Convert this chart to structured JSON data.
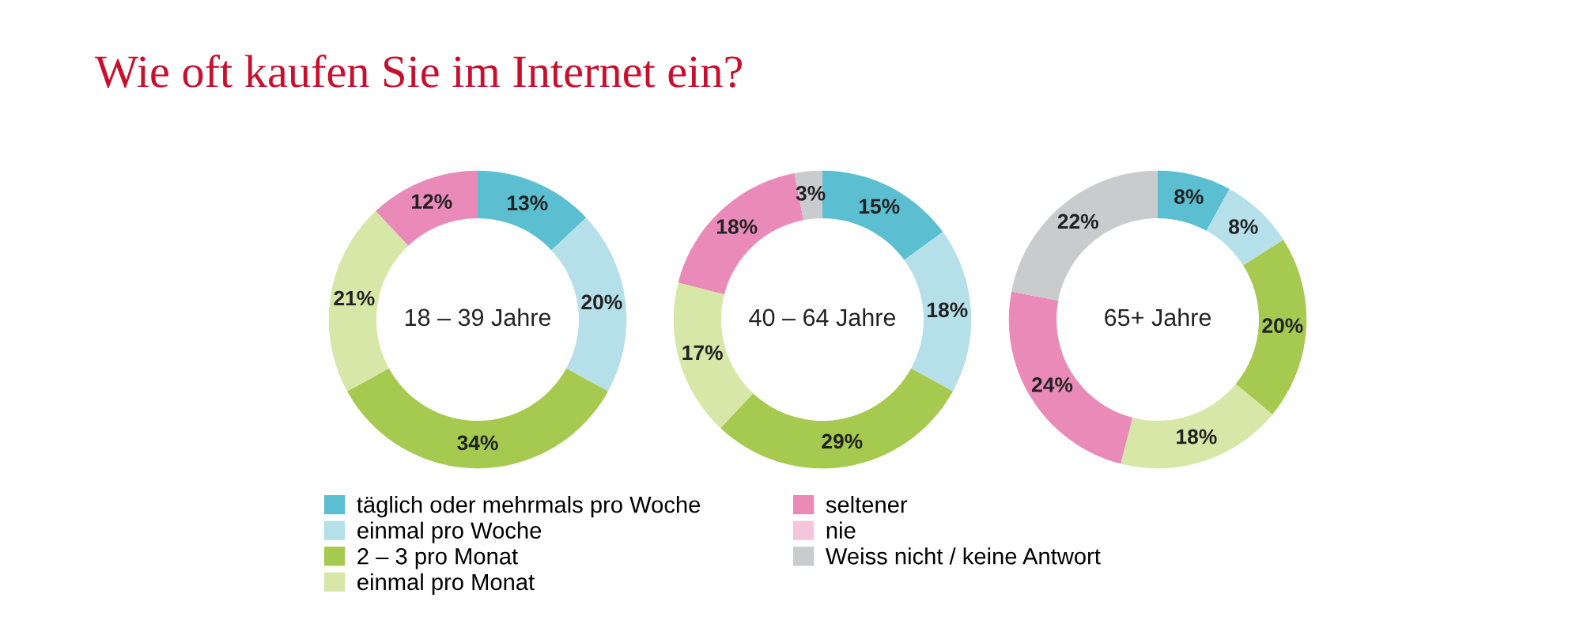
{
  "chart_data": [
    {
      "type": "donut",
      "title": "Wie oft kaufen Sie im Internet ein?",
      "subtitle": "18 – 39 Jahre",
      "legend": "bottom",
      "categories": [
        "täglich oder mehrmals pro Woche",
        "einmal pro Woche",
        "2 – 3 pro Monat",
        "einmal pro Monat",
        "seltener",
        "nie",
        "Weiss nicht / keine Antwort"
      ],
      "colors": [
        "#5bbfd1",
        "#b5e0ea",
        "#a6ca50",
        "#d7e7a8",
        "#e98ab9",
        "#f5c5dc",
        "#c9cbcd"
      ],
      "values": [
        13,
        20,
        34,
        21,
        12,
        0,
        0
      ],
      "value_labels": [
        "13%",
        "20%",
        "34%",
        "21%",
        "12%",
        null,
        null
      ]
    },
    {
      "type": "donut",
      "subtitle": "40 – 64 Jahre",
      "categories": [
        null,
        null,
        null,
        null,
        null,
        null,
        null
      ],
      "colors": [
        "#5bbfd1",
        "#b5e0ea",
        "#a6ca50",
        "#d7e7a8",
        "#e98ab9",
        "#f5c5dc",
        "#c9cbcd"
      ],
      "values": [
        15,
        18,
        29,
        17,
        18,
        0,
        3
      ],
      "value_labels": [
        "15%",
        "18%",
        "29%",
        "17%",
        "18%",
        null,
        "3%"
      ]
    },
    {
      "type": "donut",
      "subtitle": "65+ Jahre",
      "categories": [
        null,
        null,
        null,
        null,
        null,
        null,
        null
      ],
      "colors": [
        "#5bbfd1",
        "#b5e0ea",
        "#a6ca50",
        "#d7e7a8",
        "#e98ab9",
        "#f5c5dc",
        "#c9cbcd"
      ],
      "values": [
        8,
        8,
        20,
        18,
        24,
        0,
        22
      ],
      "value_labels": [
        "8%",
        "8%",
        "20%",
        "18%",
        "24%",
        null,
        "22%"
      ]
    }
  ]
}
